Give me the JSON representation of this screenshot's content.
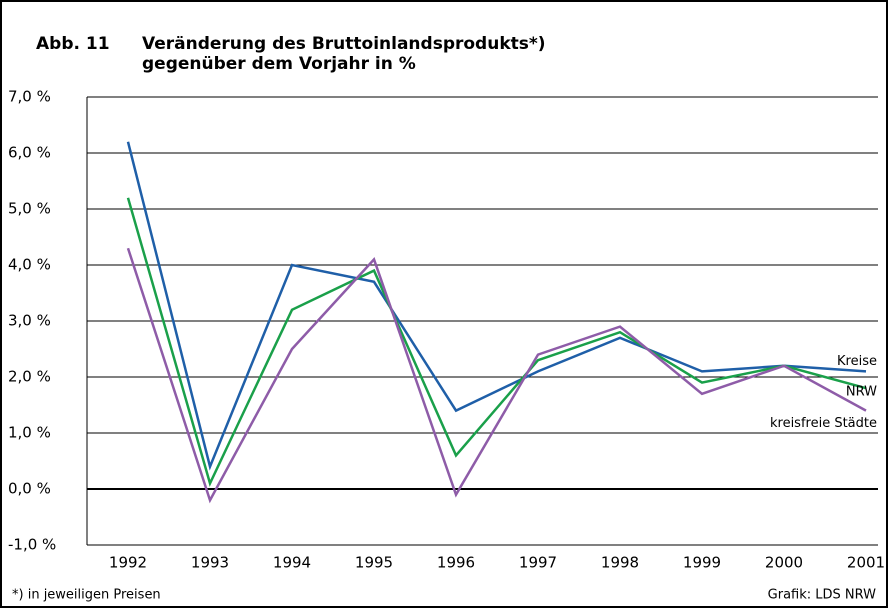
{
  "chart_data": {
    "type": "line",
    "figure_label": "Abb. 11",
    "title": [
      "Veränderung des Bruttoinlandsprodukts*)",
      "gegenüber dem Vorjahr in %"
    ],
    "footnote": "*) in jeweiligen Preisen",
    "source": "Grafik: LDS NRW",
    "categories": [
      "1992",
      "1993",
      "1994",
      "1995",
      "1996",
      "1997",
      "1998",
      "1999",
      "2000",
      "2001"
    ],
    "series": [
      {
        "name": "Kreise",
        "color": "#1f5fa8",
        "values": [
          6.2,
          0.4,
          4.0,
          3.7,
          1.4,
          2.1,
          2.7,
          2.1,
          2.2,
          2.1
        ]
      },
      {
        "name": "NRW",
        "color": "#1aa04a",
        "values": [
          5.2,
          0.1,
          3.2,
          3.9,
          0.6,
          2.3,
          2.8,
          1.9,
          2.2,
          1.8
        ]
      },
      {
        "name": "kreisfreie Städte",
        "color": "#8e5ca8",
        "values": [
          4.3,
          -0.2,
          2.5,
          4.1,
          -0.1,
          2.4,
          2.9,
          1.7,
          2.2,
          1.4
        ]
      }
    ],
    "ylim": [
      -1,
      7
    ],
    "yticks": [
      {
        "value": -1,
        "label": "-1,0 %"
      },
      {
        "value": 0,
        "label": "0,0 %"
      },
      {
        "value": 1,
        "label": "1,0 %"
      },
      {
        "value": 2,
        "label": "2,0 %"
      },
      {
        "value": 3,
        "label": "3,0 %"
      },
      {
        "value": 4,
        "label": "4,0 %"
      },
      {
        "value": 5,
        "label": "5,0 %"
      },
      {
        "value": 6,
        "label": "6,0 %"
      },
      {
        "value": 7,
        "label": "7,0 %"
      }
    ],
    "grid": true
  }
}
